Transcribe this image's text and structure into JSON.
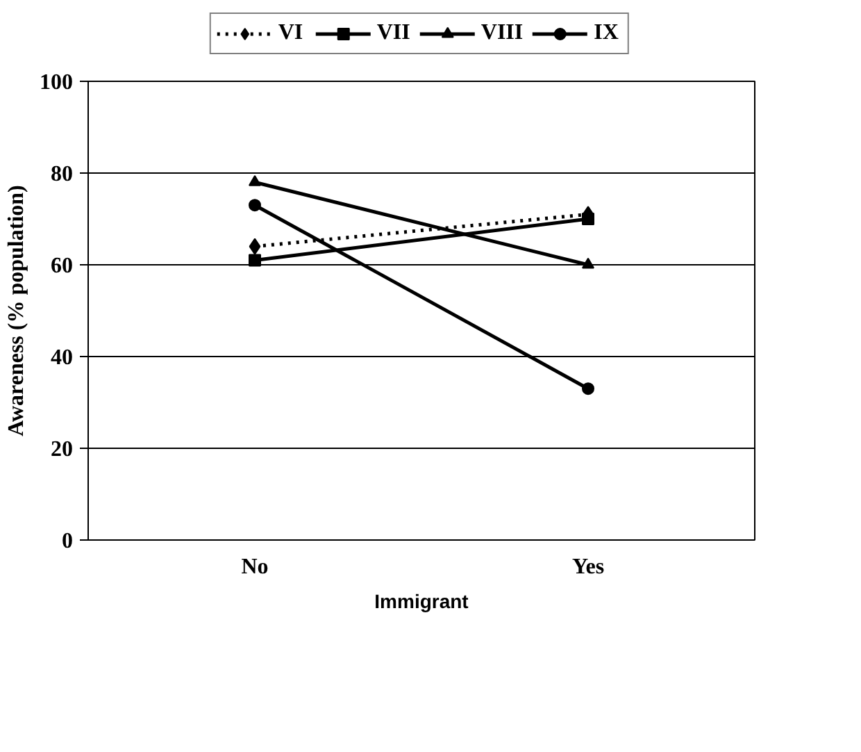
{
  "chart_data": {
    "type": "line",
    "xlabel": "Immigrant",
    "ylabel": "Awareness (% population)",
    "categories": [
      "No",
      "Yes"
    ],
    "ylim": [
      0,
      100
    ],
    "yticks": [
      0,
      20,
      40,
      60,
      80,
      100
    ],
    "grid": "y",
    "legend": "top",
    "series": [
      {
        "name": "VI",
        "color": "#000000",
        "values": [
          64,
          71
        ],
        "marker": "diamond",
        "line_style": "dotted"
      },
      {
        "name": "VII",
        "color": "#000000",
        "values": [
          61,
          70
        ],
        "marker": "square",
        "line_style": "solid"
      },
      {
        "name": "VIII",
        "color": "#000000",
        "values": [
          78,
          60
        ],
        "marker": "triangle",
        "line_style": "solid"
      },
      {
        "name": "IX",
        "color": "#000000",
        "values": [
          73,
          33
        ],
        "marker": "circle",
        "line_style": "solid"
      }
    ]
  }
}
